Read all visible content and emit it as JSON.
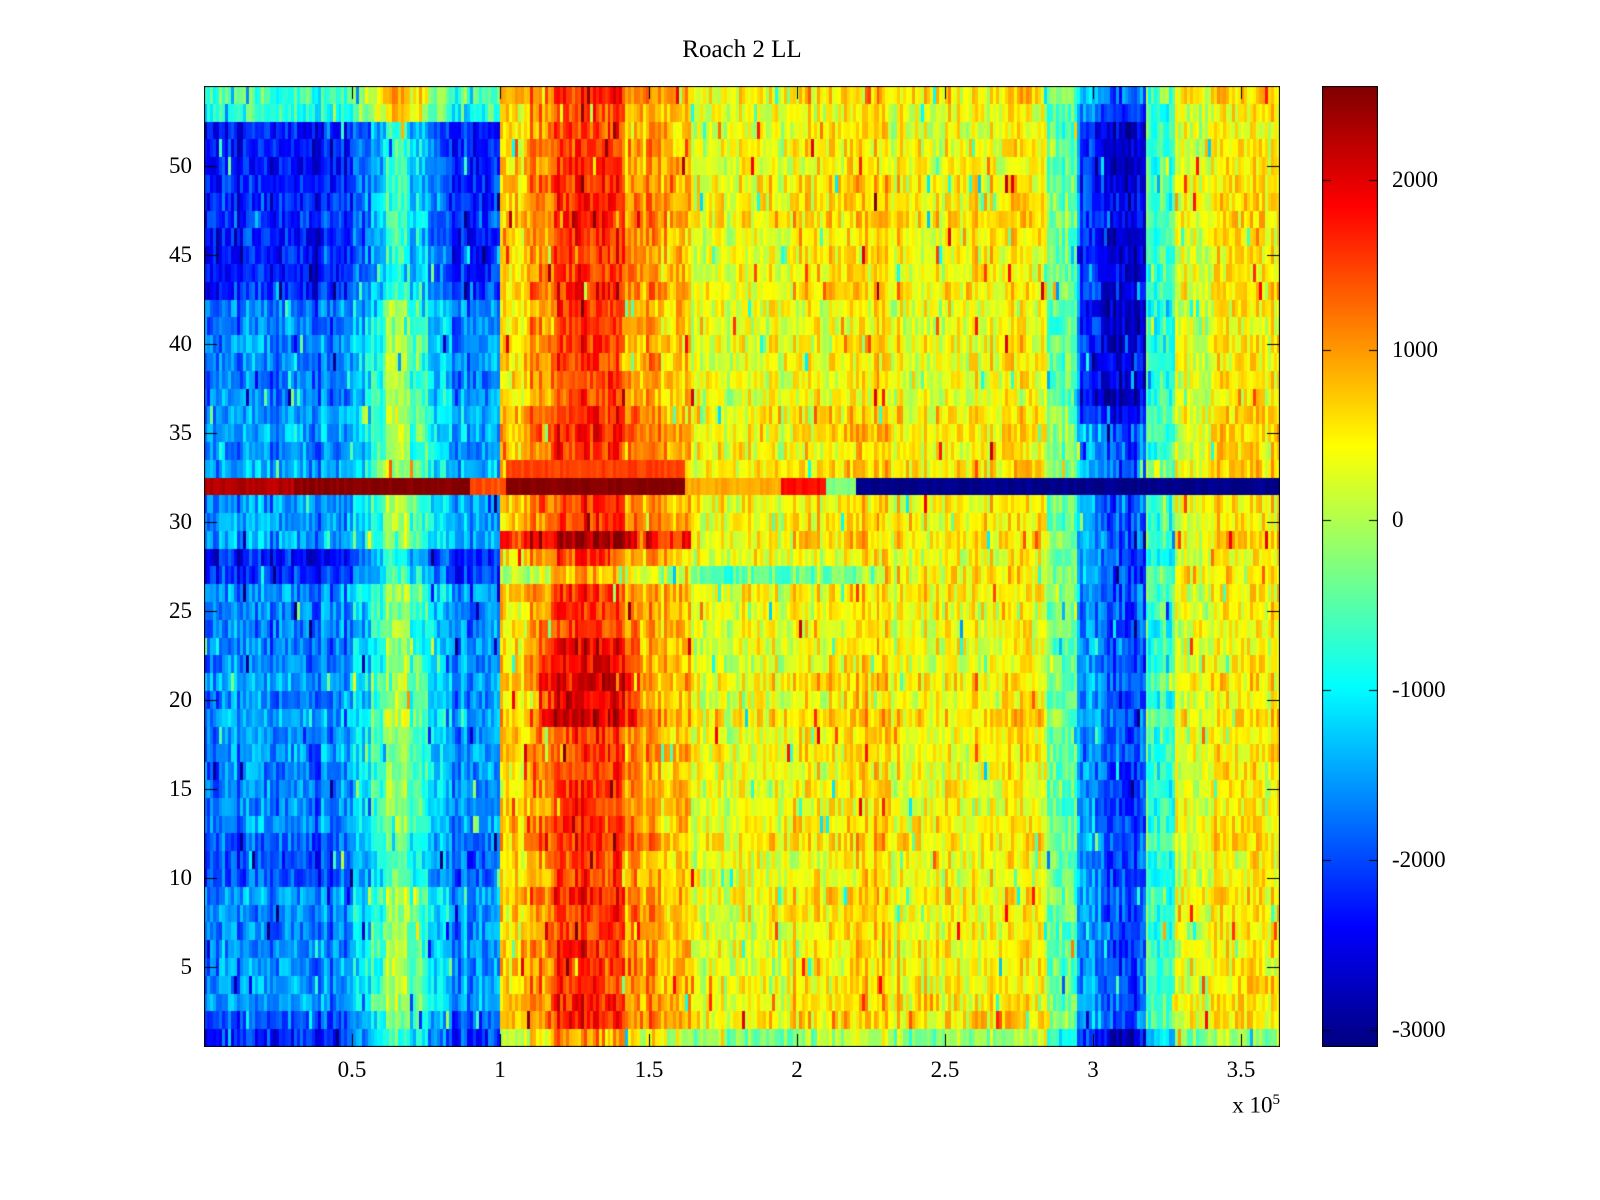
{
  "chart_data": {
    "type": "heatmap",
    "title": "Roach 2 LL",
    "colormap": "jet",
    "x_ticks": [
      0.5,
      1,
      1.5,
      2,
      2.5,
      3,
      3.5
    ],
    "x_scale_label": "x 10",
    "x_scale_exponent": "5",
    "x_range": [
      0,
      3.63
    ],
    "y_ticks": [
      5,
      10,
      15,
      20,
      25,
      30,
      35,
      40,
      45,
      50
    ],
    "n_rows": 54,
    "n_cols": 360,
    "value_range": [
      -3100,
      2550
    ],
    "colorbar_ticks": [
      2000,
      1000,
      0,
      -1000,
      -2000,
      -3000
    ],
    "noise": {
      "seed": 7,
      "cell": 420,
      "column": 240,
      "row": 130,
      "spike_prob": 0.05,
      "spike": 1500
    },
    "column_profile": [
      [
        0.0,
        0.5,
        -1650
      ],
      [
        0.5,
        0.56,
        -1200
      ],
      [
        0.56,
        0.62,
        -600
      ],
      [
        0.62,
        0.7,
        -200
      ],
      [
        0.7,
        0.76,
        -600
      ],
      [
        0.76,
        0.84,
        -1100
      ],
      [
        0.84,
        1.0,
        -1550
      ],
      [
        1.0,
        1.1,
        650
      ],
      [
        1.1,
        1.18,
        1100
      ],
      [
        1.18,
        1.42,
        1550
      ],
      [
        1.42,
        1.52,
        1000
      ],
      [
        1.52,
        1.64,
        750
      ],
      [
        1.64,
        1.97,
        300
      ],
      [
        1.97,
        2.16,
        500
      ],
      [
        2.16,
        2.32,
        650
      ],
      [
        2.32,
        2.6,
        420
      ],
      [
        2.6,
        2.84,
        470
      ],
      [
        2.84,
        2.94,
        -400
      ],
      [
        2.94,
        3.02,
        -1500
      ],
      [
        3.02,
        3.18,
        -2000
      ],
      [
        3.18,
        3.28,
        -600
      ],
      [
        3.28,
        3.4,
        250
      ],
      [
        3.4,
        3.63,
        470
      ]
    ],
    "row_features": [
      {
        "rows": [
          43,
          52
        ],
        "x": [
          0.0,
          1.0
        ],
        "delta": -650
      },
      {
        "rows": [
          53,
          54
        ],
        "x": [
          0.0,
          1.0
        ],
        "delta": 900
      },
      {
        "rows": [
          1,
          2
        ],
        "x": [
          0.0,
          1.0
        ],
        "delta": -450
      },
      {
        "rows": [
          1,
          1
        ],
        "x": [
          1.0,
          3.63
        ],
        "delta": -500
      },
      {
        "rows": [
          10,
          12
        ],
        "x": [
          0.0,
          1.0
        ],
        "delta": -300
      },
      {
        "rows": [
          27,
          28
        ],
        "x": [
          0.0,
          1.0
        ],
        "delta": -600
      },
      {
        "rows": [
          27,
          27
        ],
        "x": [
          1.0,
          2.3
        ],
        "delta": -850
      },
      {
        "rows": [
          29,
          29
        ],
        "x": [
          1.0,
          1.64
        ],
        "delta": 750
      },
      {
        "rows": [
          19,
          23
        ],
        "x": [
          1.13,
          1.47
        ],
        "delta": 450
      },
      {
        "rows": [
          36,
          52
        ],
        "x": [
          2.95,
          3.18
        ],
        "delta": -650
      },
      {
        "rows": [
          33,
          33
        ],
        "x": [
          1.02,
          1.62
        ],
        "value": 1500
      },
      {
        "rows": [
          32,
          32
        ],
        "x": [
          0.0,
          0.3
        ],
        "value": 2250
      },
      {
        "rows": [
          32,
          32
        ],
        "x": [
          0.3,
          0.55
        ],
        "value": 2500
      },
      {
        "rows": [
          32,
          32
        ],
        "x": [
          0.55,
          0.9
        ],
        "value": 2550
      },
      {
        "rows": [
          32,
          32
        ],
        "x": [
          0.9,
          1.02
        ],
        "value": 1400
      },
      {
        "rows": [
          32,
          32
        ],
        "x": [
          1.02,
          1.62
        ],
        "value": 2550
      },
      {
        "rows": [
          32,
          32
        ],
        "x": [
          1.62,
          1.95
        ],
        "value": 900
      },
      {
        "rows": [
          32,
          32
        ],
        "x": [
          1.95,
          2.1
        ],
        "value": 1800
      },
      {
        "rows": [
          32,
          32
        ],
        "x": [
          2.1,
          2.2
        ],
        "value": -300
      },
      {
        "rows": [
          32,
          32
        ],
        "x": [
          2.2,
          3.63
        ],
        "value": -3050
      }
    ]
  }
}
